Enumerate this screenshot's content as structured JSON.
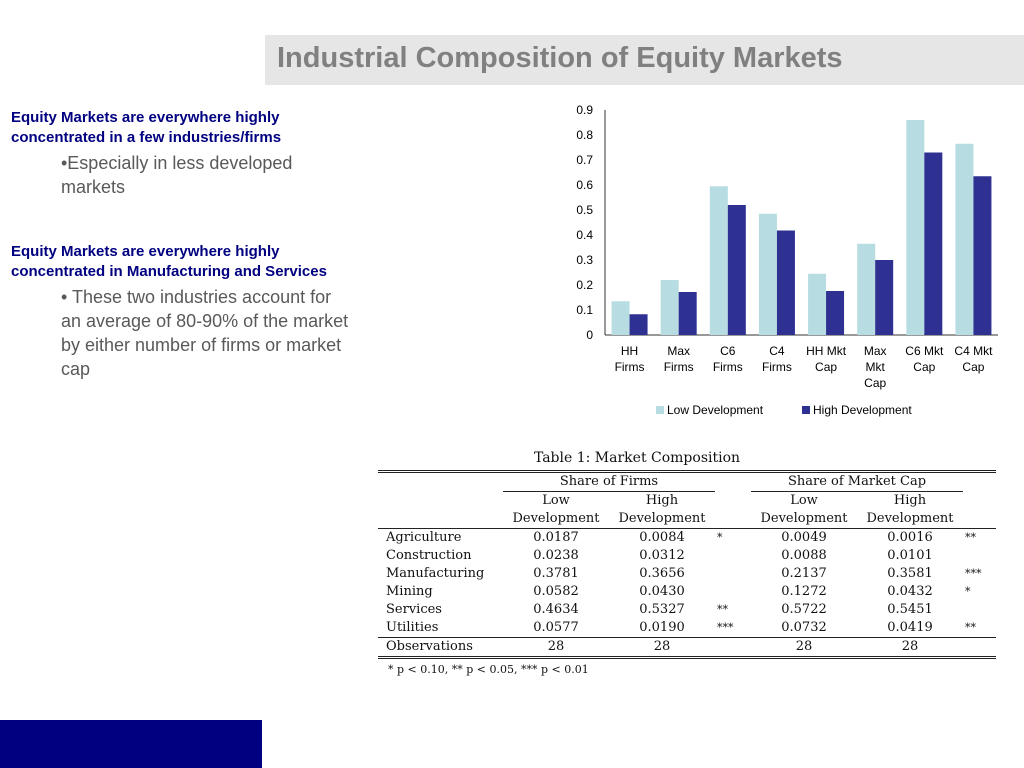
{
  "slide": {
    "title": "Industrial Composition of Equity Markets",
    "block1": {
      "heading": "Equity Markets are everywhere highly concentrated in a few industries/firms",
      "bullet": "•Especially in less developed markets"
    },
    "block2": {
      "heading": "Equity Markets are everywhere highly concentrated in Manufacturing and Services",
      "bullet": "• These two industries account for an average of 80-90% of the market by either number of firms or market cap"
    }
  },
  "chart_data": {
    "type": "bar",
    "categories": [
      [
        "HH",
        "Firms"
      ],
      [
        "Max",
        "Firms"
      ],
      [
        "C6",
        "Firms"
      ],
      [
        "C4",
        "Firms"
      ],
      [
        "HH Mkt",
        "Cap"
      ],
      [
        "Max",
        "Mkt",
        "Cap"
      ],
      [
        "C6 Mkt",
        "Cap"
      ],
      [
        "C4 Mkt",
        "Cap"
      ]
    ],
    "series": [
      {
        "name": "Low Development",
        "color": "#b7dde3",
        "values": [
          0.135,
          0.22,
          0.595,
          0.485,
          0.245,
          0.365,
          0.86,
          0.765
        ]
      },
      {
        "name": "High Development",
        "color": "#2e3192",
        "values": [
          0.083,
          0.172,
          0.52,
          0.418,
          0.176,
          0.3,
          0.73,
          0.635
        ]
      }
    ],
    "ylim": [
      0,
      0.9
    ],
    "yticks": [
      "0",
      "0.1",
      "0.2",
      "0.3",
      "0.4",
      "0.5",
      "0.6",
      "0.7",
      "0.8",
      "0.9"
    ],
    "legend_position": "bottom"
  },
  "table": {
    "caption": "Table 1:  Market Composition",
    "group1": "Share of Firms",
    "group2": "Share of Market Cap",
    "sub": {
      "low1": "Low",
      "low2": "Development",
      "high1": "High",
      "high2": "Development"
    },
    "rows": [
      {
        "label": "Agriculture",
        "v1": "0.0187",
        "v2": "0.0084",
        "s1": "*",
        "v3": "0.0049",
        "v4": "0.0016",
        "s2": "**"
      },
      {
        "label": "Construction",
        "v1": "0.0238",
        "v2": "0.0312",
        "s1": "",
        "v3": "0.0088",
        "v4": "0.0101",
        "s2": ""
      },
      {
        "label": "Manufacturing",
        "v1": "0.3781",
        "v2": "0.3656",
        "s1": "",
        "v3": "0.2137",
        "v4": "0.3581",
        "s2": "***"
      },
      {
        "label": "Mining",
        "v1": "0.0582",
        "v2": "0.0430",
        "s1": "",
        "v3": "0.1272",
        "v4": "0.0432",
        "s2": "*"
      },
      {
        "label": "Services",
        "v1": "0.4634",
        "v2": "0.5327",
        "s1": "**",
        "v3": "0.5722",
        "v4": "0.5451",
        "s2": ""
      },
      {
        "label": "Utilities",
        "v1": "0.0577",
        "v2": "0.0190",
        "s1": "***",
        "v3": "0.0732",
        "v4": "0.0419",
        "s2": "**"
      }
    ],
    "obs": {
      "label": "Observations",
      "v1": "28",
      "v2": "28",
      "v3": "28",
      "v4": "28"
    },
    "footnote": "* p < 0.10, ** p < 0.05, *** p < 0.01"
  }
}
